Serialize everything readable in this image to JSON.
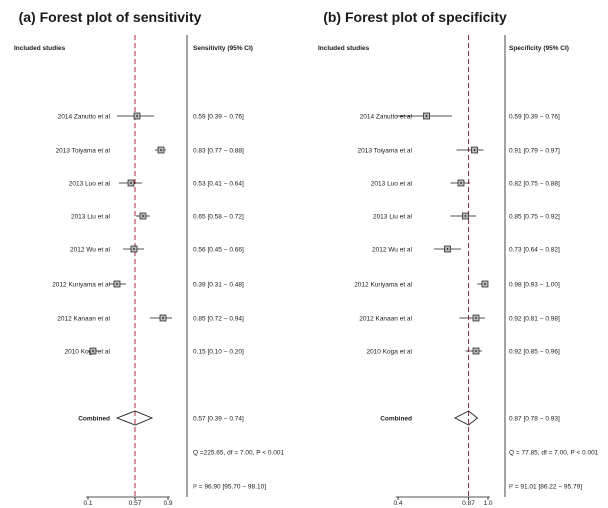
{
  "chart_data": [
    {
      "type": "forest",
      "title": "(a) Forest plot of sensitivity",
      "column_headers": {
        "studies": "Included studies",
        "estimate": "Sensitivity (95% CI)"
      },
      "xlim": [
        0.1,
        0.9
      ],
      "x_ticks": [
        "0.1",
        "0.57",
        "0.9"
      ],
      "reference_line": 0.57,
      "studies": [
        {
          "name": "2014 Zanutto et al",
          "est": 0.59,
          "lo": 0.39,
          "hi": 0.76,
          "text": "0.59 [0.39 − 0.76]"
        },
        {
          "name": "2013 Toiyama et al",
          "est": 0.83,
          "lo": 0.77,
          "hi": 0.88,
          "text": "0.83 [0.77 − 0.88]"
        },
        {
          "name": "2013 Luo et al",
          "est": 0.53,
          "lo": 0.41,
          "hi": 0.64,
          "text": "0.53 [0.41 − 0.64]"
        },
        {
          "name": "2013 Liu et al",
          "est": 0.65,
          "lo": 0.58,
          "hi": 0.72,
          "text": "0.65 [0.58 − 0.72]"
        },
        {
          "name": "2012 Wu et al",
          "est": 0.56,
          "lo": 0.45,
          "hi": 0.66,
          "text": "0.56 [0.45 − 0.66]"
        },
        {
          "name": "2012 Kuriyama et al",
          "est": 0.39,
          "lo": 0.31,
          "hi": 0.48,
          "text": "0.39 [0.31 − 0.48]"
        },
        {
          "name": "2012 Kanaan et al",
          "est": 0.85,
          "lo": 0.72,
          "hi": 0.94,
          "text": "0.85 [0.72 − 0.94]"
        },
        {
          "name": "2010 Koga et al",
          "est": 0.15,
          "lo": 0.1,
          "hi": 0.2,
          "text": "0.15 [0.10 − 0.20]"
        }
      ],
      "combined": {
        "name": "Combined",
        "est": 0.57,
        "lo": 0.39,
        "hi": 0.74,
        "text": "0.57 [0.39 − 0.74]"
      },
      "stats": {
        "q": "Q =225.65, df = 7.00, P < 0.001",
        "i2": "I² = 96.90 [95.70 − 98.10]"
      }
    },
    {
      "type": "forest",
      "title": "(b) Forest plot of specificity",
      "column_headers": {
        "studies": "Included studies",
        "estimate": "Specificity (95% CI)"
      },
      "xlim": [
        0.4,
        1.0
      ],
      "x_ticks": [
        "0.4",
        "0.87",
        "1.0"
      ],
      "reference_line": 0.87,
      "studies": [
        {
          "name": "2014 Zanutto et al",
          "est": 0.59,
          "lo": 0.39,
          "hi": 0.76,
          "text": "0.59 [0.39 − 0.76]"
        },
        {
          "name": "2013 Toiyama et al",
          "est": 0.91,
          "lo": 0.79,
          "hi": 0.97,
          "text": "0.91 [0.79 − 0.97]"
        },
        {
          "name": "2013 Luo et al",
          "est": 0.82,
          "lo": 0.75,
          "hi": 0.88,
          "text": "0.82 [0.75 − 0.88]"
        },
        {
          "name": "2013 Liu et al",
          "est": 0.85,
          "lo": 0.75,
          "hi": 0.92,
          "text": "0.85 [0.75 − 0.92]"
        },
        {
          "name": "2012 Wu et al",
          "est": 0.73,
          "lo": 0.64,
          "hi": 0.82,
          "text": "0.73 [0.64 − 0.82]"
        },
        {
          "name": "2012 Kuriyama et al",
          "est": 0.98,
          "lo": 0.93,
          "hi": 1.0,
          "text": "0.98 [0.93 − 1.00]"
        },
        {
          "name": "2012 Kanaan et al",
          "est": 0.92,
          "lo": 0.81,
          "hi": 0.98,
          "text": "0.92 [0.81 − 0.98]"
        },
        {
          "name": "2010 Koga et al",
          "est": 0.92,
          "lo": 0.85,
          "hi": 0.96,
          "text": "0.92 [0.85 − 0.96]"
        }
      ],
      "combined": {
        "name": "Combined",
        "est": 0.87,
        "lo": 0.78,
        "hi": 0.93,
        "text": "0.87 [0.78 − 0.93]"
      },
      "stats": {
        "q": "Q = 77.85, df = 7.00, P < 0.001",
        "i2": "I² = 91.01 [86.22 − 95.79]"
      }
    }
  ],
  "colors": {
    "reference_line": "#c8223a",
    "ink": "#1a1a1a",
    "marker_fill": "#b8b8b8"
  }
}
